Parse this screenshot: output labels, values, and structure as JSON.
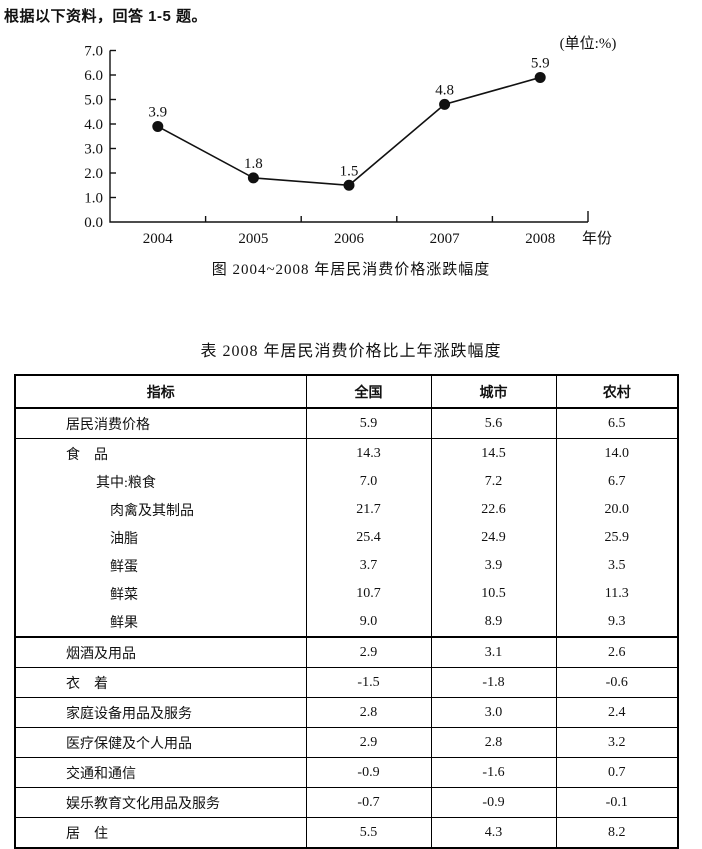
{
  "page": {
    "instruction": "根据以下资料，回答 1-5 题。"
  },
  "chart_data": {
    "type": "line",
    "title": "图 2004~2008 年居民消费价格涨跌幅度",
    "xlabel": "年份",
    "ylabel": "(单位:%)",
    "categories": [
      "2004",
      "2005",
      "2006",
      "2007",
      "2008"
    ],
    "values": [
      3.9,
      1.8,
      1.5,
      4.8,
      5.9
    ],
    "data_labels": [
      "3.9",
      "1.8",
      "1.5",
      "4.8",
      "5.9"
    ],
    "ylim": [
      0,
      7
    ],
    "yticks": [
      0,
      1,
      2,
      3,
      4,
      5,
      6,
      7
    ],
    "ytick_labels": [
      "0.0",
      "1.0",
      "2.0",
      "3.0",
      "4.0",
      "5.0",
      "6.0",
      "7.0"
    ],
    "grid": false,
    "legend": "none",
    "marker": "filled-circle",
    "line_color": "#111111"
  },
  "table": {
    "caption": "表 2008 年居民消费价格比上年涨跌幅度",
    "columns": [
      "指标",
      "全国",
      "城市",
      "农村"
    ],
    "rows": [
      {
        "label": "居民消费价格",
        "indent": 0,
        "sep": "line",
        "values": [
          "5.9",
          "5.6",
          "6.5"
        ]
      },
      {
        "label": "食　品",
        "indent": 0,
        "sep": "line",
        "values": [
          "14.3",
          "14.5",
          "14.0"
        ]
      },
      {
        "label": "其中:粮食",
        "indent": 1,
        "sep": "none",
        "values": [
          "7.0",
          "7.2",
          "6.7"
        ]
      },
      {
        "label": "肉禽及其制品",
        "indent": 2,
        "sep": "none",
        "values": [
          "21.7",
          "22.6",
          "20.0"
        ]
      },
      {
        "label": "油脂",
        "indent": 2,
        "sep": "none",
        "values": [
          "25.4",
          "24.9",
          "25.9"
        ]
      },
      {
        "label": "鲜蛋",
        "indent": 2,
        "sep": "none",
        "values": [
          "3.7",
          "3.9",
          "3.5"
        ]
      },
      {
        "label": "鲜菜",
        "indent": 2,
        "sep": "none",
        "values": [
          "10.7",
          "10.5",
          "11.3"
        ]
      },
      {
        "label": "鲜果",
        "indent": 2,
        "sep": "none",
        "values": [
          "9.0",
          "8.9",
          "9.3"
        ]
      },
      {
        "label": "烟酒及用品",
        "indent": 0,
        "sep": "thick",
        "values": [
          "2.9",
          "3.1",
          "2.6"
        ]
      },
      {
        "label": "衣　着",
        "indent": 0,
        "sep": "line",
        "values": [
          "-1.5",
          "-1.8",
          "-0.6"
        ]
      },
      {
        "label": "家庭设备用品及服务",
        "indent": 0,
        "sep": "line",
        "values": [
          "2.8",
          "3.0",
          "2.4"
        ]
      },
      {
        "label": "医疗保健及个人用品",
        "indent": 0,
        "sep": "line",
        "values": [
          "2.9",
          "2.8",
          "3.2"
        ]
      },
      {
        "label": "交通和通信",
        "indent": 0,
        "sep": "line",
        "values": [
          "-0.9",
          "-1.6",
          "0.7"
        ]
      },
      {
        "label": "娱乐教育文化用品及服务",
        "indent": 0,
        "sep": "line",
        "values": [
          "-0.7",
          "-0.9",
          "-0.1"
        ]
      },
      {
        "label": "居　住",
        "indent": 0,
        "sep": "line",
        "values": [
          "5.5",
          "4.3",
          "8.2"
        ]
      }
    ]
  }
}
